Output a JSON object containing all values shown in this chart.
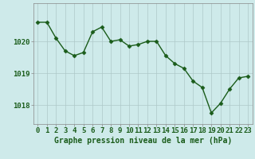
{
  "x": [
    0,
    1,
    2,
    3,
    4,
    5,
    6,
    7,
    8,
    9,
    10,
    11,
    12,
    13,
    14,
    15,
    16,
    17,
    18,
    19,
    20,
    21,
    22,
    23
  ],
  "y": [
    1020.6,
    1020.6,
    1020.1,
    1019.7,
    1019.55,
    1019.65,
    1020.3,
    1020.45,
    1020.0,
    1020.05,
    1019.85,
    1019.9,
    1020.0,
    1020.0,
    1019.55,
    1019.3,
    1019.15,
    1018.75,
    1018.55,
    1017.75,
    1018.05,
    1018.5,
    1018.85,
    1018.9
  ],
  "line_color": "#1a5c1a",
  "marker": "D",
  "marker_size": 2.5,
  "line_width": 1.0,
  "bg_color": "#ceeaea",
  "grid_color": "#adc8c8",
  "xlabel": "Graphe pression niveau de la mer (hPa)",
  "xlabel_color": "#1a5c1a",
  "xlabel_fontsize": 7.0,
  "ylim": [
    1017.4,
    1021.2
  ],
  "xlim": [
    -0.5,
    23.5
  ],
  "tick_color": "#1a5c1a",
  "tick_fontsize": 6.5,
  "ytick_fontsize": 6.5
}
